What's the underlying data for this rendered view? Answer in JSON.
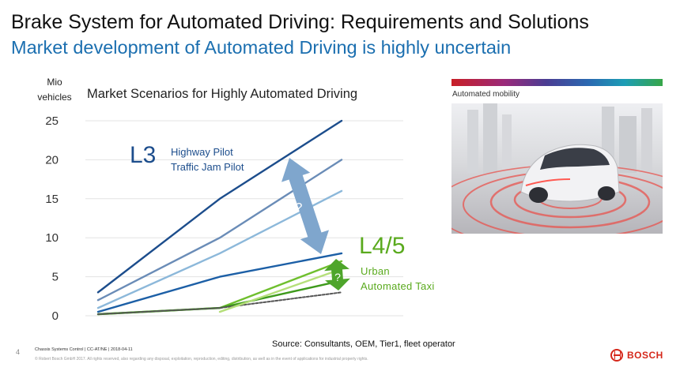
{
  "header": {
    "title": "Brake System for Automated Driving: Requirements and Solutions",
    "subtitle": "Market development of Automated Driving is highly uncertain"
  },
  "chart_data": {
    "type": "line",
    "title": "Market Scenarios for Highly Automated Driving",
    "ylabel_line1": "Mio",
    "ylabel_line2": "vehicles",
    "xlabel": "",
    "ylim": [
      0,
      25
    ],
    "yticks": [
      "25",
      "20",
      "15",
      "10",
      "5",
      "0"
    ],
    "x": [
      0,
      1,
      2
    ],
    "grid": "horizontal",
    "series": [
      {
        "group": "L3",
        "color": "#1c4d8c",
        "values": [
          3,
          15,
          25
        ]
      },
      {
        "group": "L3",
        "color": "#6a8cb7",
        "values": [
          2,
          10,
          20
        ]
      },
      {
        "group": "L3",
        "color": "#8cb8da",
        "values": [
          1,
          8,
          16
        ]
      },
      {
        "group": "L3",
        "color": "#1c5fa6",
        "values": [
          0.5,
          5,
          8
        ]
      },
      {
        "group": "L4/5",
        "color": "#6fbf2e",
        "values": [
          0.2,
          1,
          7
        ]
      },
      {
        "group": "L4/5",
        "color": "#3e9a1c",
        "values": [
          0.2,
          1,
          4.5
        ]
      },
      {
        "group": "L4/5",
        "color": "#555555",
        "dashed": true,
        "values": [
          0.2,
          1,
          3
        ]
      },
      {
        "group": "L4/5",
        "color": "#b5df7a",
        "values": [
          null,
          0.5,
          6
        ]
      }
    ],
    "annotations": {
      "l3_level": "L3",
      "l3_lines": [
        "Highway Pilot",
        "Traffic Jam Pilot"
      ],
      "l45_level": "L4/5",
      "l45_lines": [
        "Urban",
        "Automated Taxi"
      ],
      "uncertainty_mark": "?"
    }
  },
  "image": {
    "label": "Automated mobility"
  },
  "footer": {
    "source": "Source: Consultants, OEM, Tier1, fleet operator",
    "page": "4",
    "info": "Chassis Systems Control | CC-AT/NE | 2018-04-11",
    "copyright": "© Robert Bosch GmbH 2017. All rights reserved, also regarding any disposal, exploitation, reproduction, editing, distribution, as well as in the event of applications for industrial property rights.",
    "brand": "BOSCH"
  },
  "colors": {
    "title_blue": "#1b6fb0",
    "l3_blue": "#1c4d8c",
    "l45_green": "#5aaa1e",
    "arrow_blue": "#7fa6cd",
    "arrow_green": "#4ea52b",
    "bosch_red": "#d5281b"
  }
}
